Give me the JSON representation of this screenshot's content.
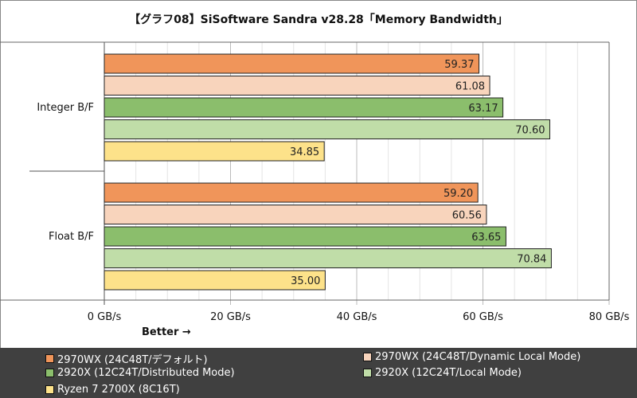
{
  "chart_data": {
    "type": "bar",
    "orientation": "horizontal",
    "title": "【グラフ08】SiSoftware Sandra v28.28「Memory Bandwidth」",
    "categories": [
      "Integer B/F",
      "Float B/F"
    ],
    "series": [
      {
        "name": "2970WX (24C48T/デフォルト)",
        "color": "#F0955A",
        "values": [
          59.37,
          59.2
        ]
      },
      {
        "name": "2970WX (24C48T/Dynamic Local Mode)",
        "color": "#F8D4BC",
        "values": [
          61.08,
          60.56
        ]
      },
      {
        "name": "2920X (12C24T/Distributed Mode)",
        "color": "#8BBE6C",
        "values": [
          63.17,
          63.65
        ]
      },
      {
        "name": "2920X (12C24T/Local Mode)",
        "color": "#C0DDA8",
        "values": [
          70.6,
          70.84
        ]
      },
      {
        "name": "Ryzen 7 2700X (8C16T)",
        "color": "#FDE28A",
        "values": [
          34.85,
          35.0
        ]
      }
    ],
    "value_labels": [
      [
        "59.37",
        "61.08",
        "63.17",
        "70.60",
        "34.85"
      ],
      [
        "59.20",
        "60.56",
        "63.65",
        "70.84",
        "35.00"
      ]
    ],
    "xlim": [
      0,
      80
    ],
    "xticks": [
      0,
      20,
      40,
      60,
      80
    ],
    "xtick_labels": [
      "0 GB/s",
      "20 GB/s",
      "40 GB/s",
      "60 GB/s",
      "80 GB/s"
    ],
    "xlabel": "Better →",
    "grid": true,
    "legend_position": "bottom"
  }
}
